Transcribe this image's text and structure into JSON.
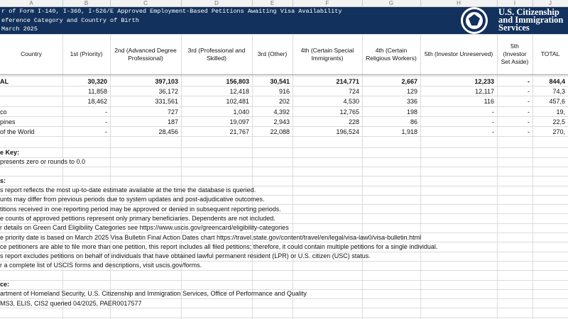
{
  "column_letters": [
    "A",
    "B",
    "C",
    "D",
    "E",
    "F",
    "G",
    "H",
    "I",
    "J"
  ],
  "header": {
    "title_lines": [
      "r of Form I-140, I-360, I-526/E Approved Employment-Based Petitions Awaiting Visa Availability",
      "eference Category and Country of Birth",
      "March 2025"
    ],
    "agency": [
      "U.S. Citizenship",
      "and Immigration",
      "Services"
    ]
  },
  "table": {
    "columns": [
      "Country",
      "1st (Priority)",
      "2nd (Advanced Degree Professional)",
      "3rd (Professional and Skilled)",
      "3rd (Other)",
      "4th (Certain Special Immigrants)",
      "4th (Certain Religious Workers)",
      "5th (Investor Unreserved)",
      "5th (Investor Set Aside)",
      "TOTAL"
    ],
    "rows": [
      {
        "country": "AL",
        "values": [
          "30,320",
          "397,103",
          "156,803",
          "30,541",
          "214,771",
          "2,667",
          "12,233",
          "-",
          "844,4"
        ]
      },
      {
        "values": [
          "11,858",
          "36,172",
          "12,418",
          "916",
          "724",
          "129",
          "12,117",
          "-",
          "74,3"
        ]
      },
      {
        "values": [
          "18,462",
          "331,561",
          "102,481",
          "202",
          "4,530",
          "336",
          "116",
          "-",
          "457,6"
        ]
      },
      {
        "country": "co",
        "values": [
          "-",
          "727",
          "1,040",
          "4,392",
          "12,765",
          "198",
          "-",
          "-",
          "19,"
        ]
      },
      {
        "country": "pines",
        "values": [
          "-",
          "187",
          "19,097",
          "2,943",
          "228",
          "86",
          "-",
          "-",
          "22,5"
        ]
      },
      {
        "country": "of the World",
        "values": [
          "-",
          "28,456",
          "21,767",
          "22,088",
          "196,524",
          "1,918",
          "-",
          "-",
          "270,"
        ]
      }
    ]
  },
  "key": {
    "heading": "e Key:",
    "text": "presents zero or rounds to 0.0"
  },
  "notes": {
    "heading": "s:",
    "items": [
      "s report reflects the most up-to-date estimate available at the time the database is queried.",
      "unts may differ from previous periods due to system updates and post-adjudicative outcomes.",
      "titions received in one reporting period may be approved or denied in subsequent reporting periods.",
      "e counts of approved petitions represent only primary beneficiaries. Dependents are not included.",
      "r details on Green Card Eligibility Categories see https://www.uscis.gov/greencard/eligibility-categories",
      "e priority date is based on March 2025 Visa Bulletin Final Action Dates chart https://travel.state.gov/content/travel/en/legal/visa-law0/visa-bulletin.html",
      "ce petitioners are able to file more than one petition, this report includes all filed petitions; therefore, it could contain multiple petitions for a single individual.",
      "s report excludes petitions on behalf of individuals that have obtained lawful permanent resident (LPR) or U.S. citizen (USC) status.",
      "r a complete list of USCIS forms and descriptions, visit uscis.gov/forms."
    ]
  },
  "source": {
    "heading": "ce:",
    "items": [
      "artment of Homeland Security, U.S. Citizenship and Immigration Services, Office of Performance and Quality",
      "MS3, ELIS, CIS2 queried 04/2025, PAER0017577"
    ]
  }
}
